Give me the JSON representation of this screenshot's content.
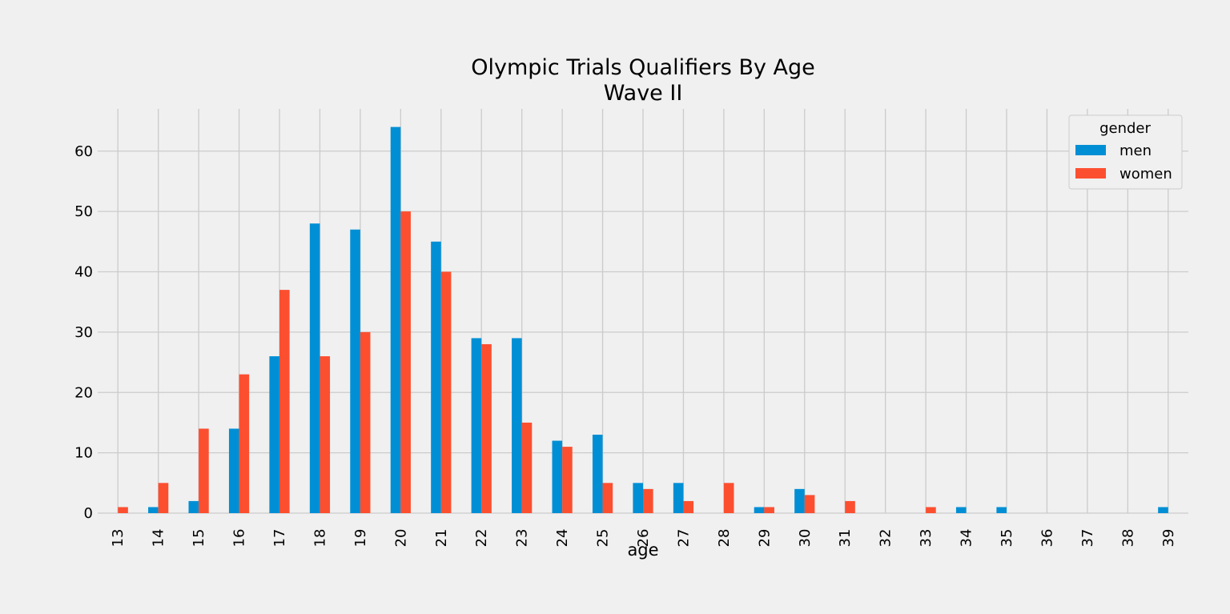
{
  "chart_data": {
    "type": "bar",
    "title": "Olympic Trials Qualifiers By Age",
    "subtitle": "Wave II",
    "xlabel": "age",
    "ylabel": "",
    "ylim": [
      0,
      67
    ],
    "yticks": [
      0,
      10,
      20,
      30,
      40,
      50,
      60
    ],
    "grid": true,
    "categories": [
      "13",
      "14",
      "15",
      "16",
      "17",
      "18",
      "19",
      "20",
      "21",
      "22",
      "23",
      "24",
      "25",
      "26",
      "27",
      "28",
      "29",
      "30",
      "31",
      "32",
      "33",
      "34",
      "35",
      "36",
      "37",
      "38",
      "39"
    ],
    "series": [
      {
        "name": "men",
        "color": "#008fd5",
        "values": [
          0,
          1,
          2,
          14,
          26,
          48,
          47,
          64,
          45,
          29,
          29,
          12,
          13,
          5,
          5,
          0,
          1,
          4,
          0,
          0,
          0,
          1,
          1,
          0,
          0,
          0,
          1
        ]
      },
      {
        "name": "women",
        "color": "#fc4f30",
        "values": [
          1,
          5,
          14,
          23,
          37,
          26,
          30,
          50,
          40,
          28,
          15,
          11,
          5,
          4,
          2,
          5,
          1,
          3,
          2,
          0,
          1,
          0,
          0,
          0,
          0,
          0,
          0
        ]
      }
    ],
    "legend": {
      "title": "gender",
      "position": "top-right"
    }
  }
}
